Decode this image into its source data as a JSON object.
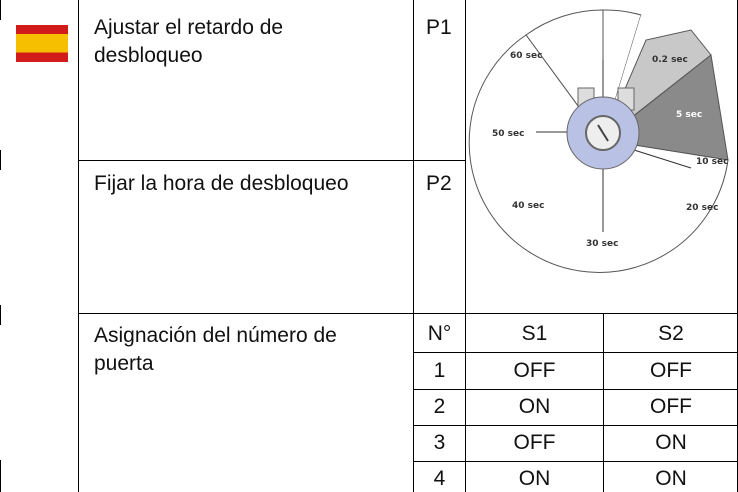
{
  "rows": [
    {
      "label": "Ajustar el retardo de desbloqueo",
      "code": "P1"
    },
    {
      "label": "Fijar la hora de desbloqueo",
      "code": "P2"
    }
  ],
  "dial": {
    "labels": [
      "60 sec",
      "0.2 sec",
      "5 sec",
      "50 sec",
      "10 sec",
      "40 sec",
      "20 sec",
      "30 sec"
    ]
  },
  "door_table": {
    "label": "Asignación del número de puerta",
    "header": [
      "N°",
      "S1",
      "S2"
    ],
    "rows": [
      [
        "1",
        "OFF",
        "OFF"
      ],
      [
        "2",
        "ON",
        "OFF"
      ],
      [
        "3",
        "OFF",
        "ON"
      ],
      [
        "4",
        "ON",
        "ON"
      ]
    ]
  }
}
